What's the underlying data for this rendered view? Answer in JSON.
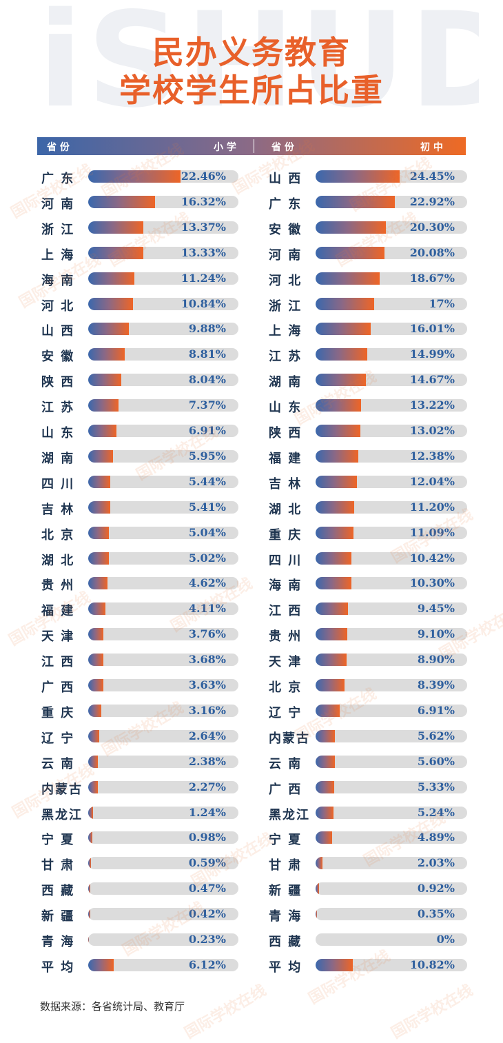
{
  "background_text": "iSHUDU",
  "title_line1": "民办义务教育",
  "title_line2": "学校学生所占比重",
  "header": {
    "left_province": "省 份",
    "left_metric": "小 学",
    "right_province": "省 份",
    "right_metric": "初 中"
  },
  "source": "数据来源：各省统计局、教育厅",
  "watermark_text": "国际学校在线",
  "colors": {
    "title": "#e8602a",
    "bar_start": "#3a68ad",
    "bar_end": "#ee6526",
    "value_text": "#2e5f9e",
    "label_text": "#1f3550"
  },
  "chart_data": [
    {
      "type": "bar",
      "title": "小学",
      "xlim": [
        0,
        36.5
      ],
      "categories": [
        "广 东",
        "河 南",
        "浙 江",
        "上 海",
        "海 南",
        "河 北",
        "山 西",
        "安 徽",
        "陕 西",
        "江 苏",
        "山 东",
        "湖 南",
        "四 川",
        "吉 林",
        "北 京",
        "湖 北",
        "贵 州",
        "福 建",
        "天 津",
        "江 西",
        "广 西",
        "重 庆",
        "辽 宁",
        "云 南",
        "内蒙古",
        "黑龙江",
        "宁 夏",
        "甘 肃",
        "西 藏",
        "新 疆",
        "青 海",
        "平 均"
      ],
      "values": [
        22.46,
        16.32,
        13.37,
        13.33,
        11.24,
        10.84,
        9.88,
        8.81,
        8.04,
        7.37,
        6.91,
        5.95,
        5.44,
        5.41,
        5.04,
        5.02,
        4.62,
        4.11,
        3.76,
        3.68,
        3.63,
        3.16,
        2.64,
        2.38,
        2.27,
        1.24,
        0.98,
        0.59,
        0.47,
        0.42,
        0.23,
        6.12
      ],
      "labels": [
        "22.46%",
        "16.32%",
        "13.37%",
        "13.33%",
        "11.24%",
        "10.84%",
        "9.88%",
        "8.81%",
        "8.04%",
        "7.37%",
        "6.91%",
        "5.95%",
        "5.44%",
        "5.41%",
        "5.04%",
        "5.02%",
        "4.62%",
        "4.11%",
        "3.76%",
        "3.68%",
        "3.63%",
        "3.16%",
        "2.64%",
        "2.38%",
        "2.27%",
        "1.24%",
        "0.98%",
        "0.59%",
        "0.47%",
        "0.42%",
        "0.23%",
        "6.12%"
      ]
    },
    {
      "type": "bar",
      "title": "初中",
      "xlim": [
        0,
        44
      ],
      "categories": [
        "山 西",
        "广 东",
        "安 徽",
        "河 南",
        "河 北",
        "浙 江",
        "上 海",
        "江 苏",
        "湖 南",
        "山 东",
        "陕 西",
        "福 建",
        "吉 林",
        "湖 北",
        "重 庆",
        "四 川",
        "海 南",
        "江 西",
        "贵 州",
        "天 津",
        "北 京",
        "辽 宁",
        "内蒙古",
        "云 南",
        "广 西",
        "黑龙江",
        "宁 夏",
        "甘 肃",
        "新 疆",
        "青 海",
        "西 藏",
        "平 均"
      ],
      "values": [
        24.45,
        22.92,
        20.3,
        20.08,
        18.67,
        17,
        16.01,
        14.99,
        14.67,
        13.22,
        13.02,
        12.38,
        12.04,
        11.2,
        11.09,
        10.42,
        10.3,
        9.45,
        9.1,
        8.9,
        8.39,
        6.91,
        5.62,
        5.6,
        5.33,
        5.24,
        4.89,
        2.03,
        0.92,
        0.35,
        0,
        10.82
      ],
      "labels": [
        "24.45%",
        "22.92%",
        "20.30%",
        "20.08%",
        "18.67%",
        "17%",
        "16.01%",
        "14.99%",
        "14.67%",
        "13.22%",
        "13.02%",
        "12.38%",
        "12.04%",
        "11.20%",
        "11.09%",
        "10.42%",
        "10.30%",
        "9.45%",
        "9.10%",
        "8.90%",
        "8.39%",
        "6.91%",
        "5.62%",
        "5.60%",
        "5.33%",
        "5.24%",
        "4.89%",
        "2.03%",
        "0.92%",
        "0.35%",
        "0%",
        "10.82%"
      ]
    }
  ]
}
